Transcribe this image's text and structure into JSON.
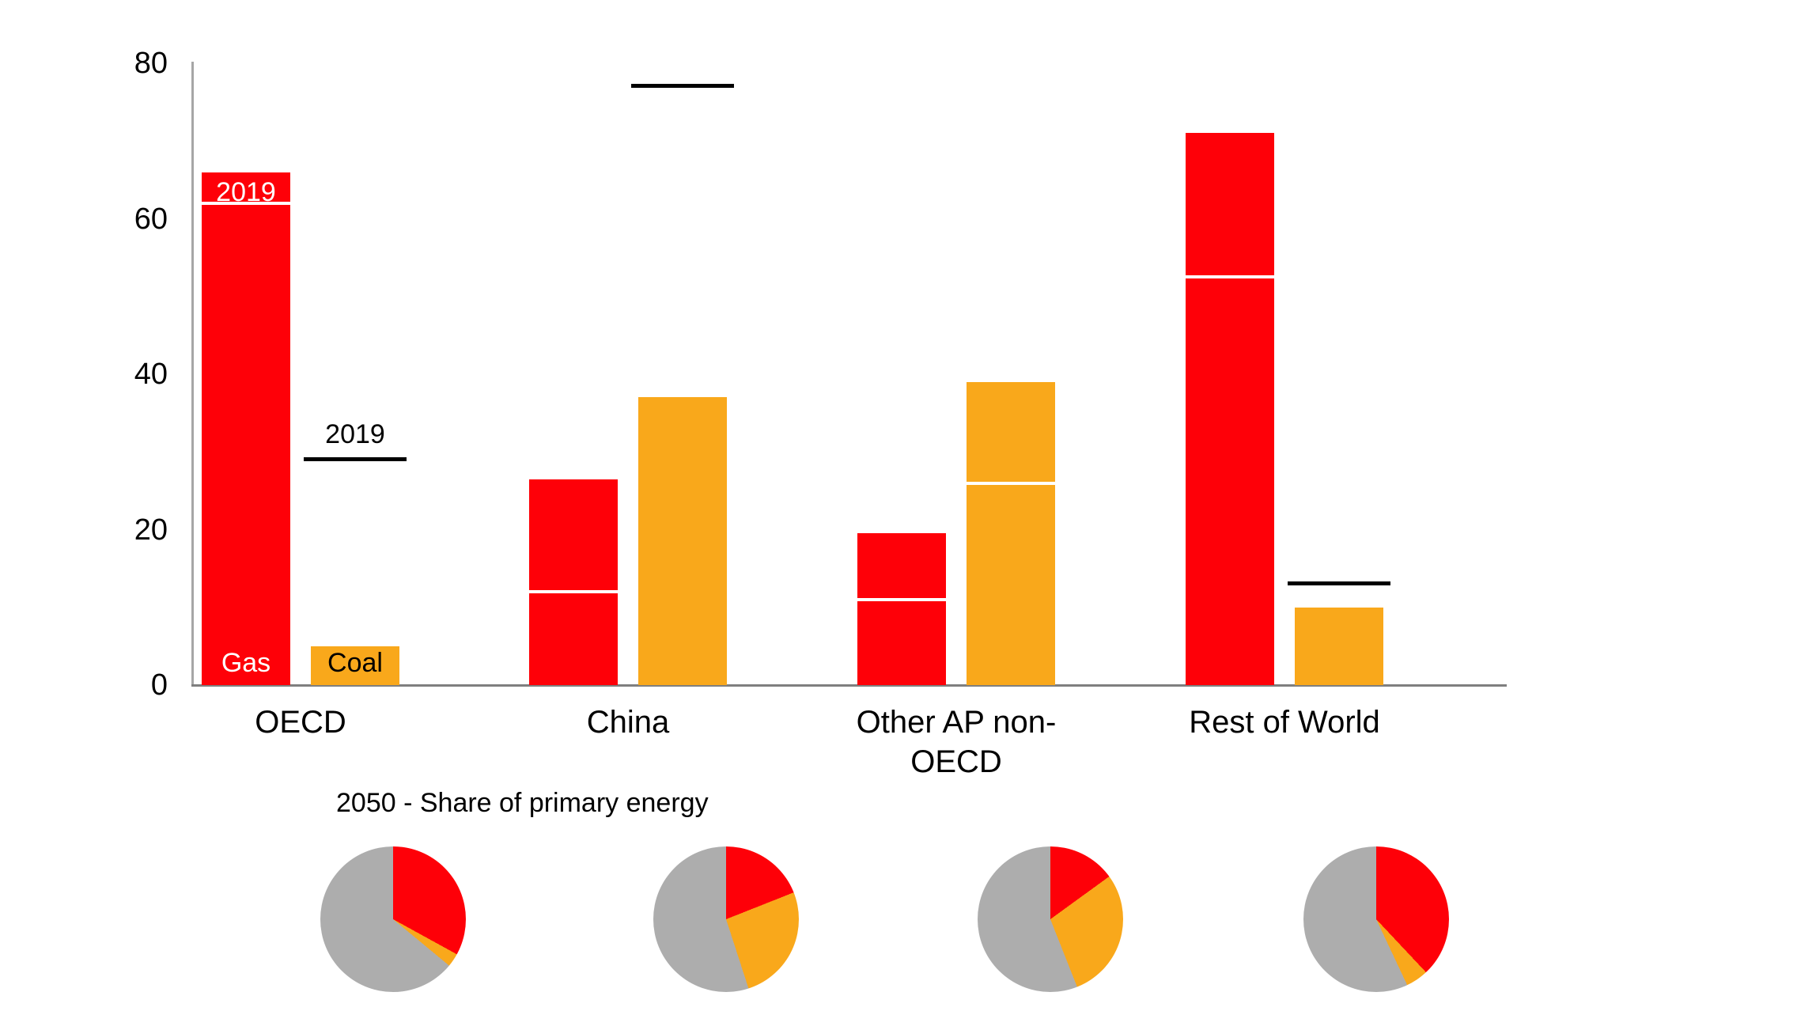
{
  "colors": {
    "gas_red": "#FE0008",
    "coal_orange": "#F9A81B",
    "other_gray": "#ADADAD",
    "axis_line": "#A6A6A6",
    "baseline": "#7F7F7F",
    "marker_black": "#000000",
    "marker_white": "#FFFFFF",
    "text_black": "#000000",
    "text_white": "#FFFFFF"
  },
  "chart_data": {
    "type": "bar",
    "title": "",
    "xlabel": "",
    "ylabel": "",
    "ylim": [
      0,
      80
    ],
    "yticks": [
      0,
      20,
      40,
      60,
      80
    ],
    "grid": false,
    "legend_position": "none",
    "categories": [
      "OECD",
      "China",
      "Other AP non-OECD",
      "Rest of World"
    ],
    "category_label_lines": [
      [
        "OECD"
      ],
      [
        "China"
      ],
      [
        "Other AP non-",
        "OECD"
      ],
      [
        "Rest of World"
      ]
    ],
    "series": [
      {
        "name": "Gas",
        "color_key": "gas_red",
        "values_2050": [
          66,
          26.5,
          19.5,
          71
        ],
        "values_2019": [
          62,
          12,
          11,
          52.5
        ]
      },
      {
        "name": "Coal",
        "color_key": "coal_orange",
        "values_2050": [
          5,
          37,
          39,
          10
        ],
        "values_2019": [
          29,
          77,
          26,
          13
        ]
      }
    ],
    "marker_year_label": "2019",
    "inbar_series_labels": {
      "gas": "Gas",
      "coal": "Coal"
    }
  },
  "pies": {
    "title": "2050 - Share of primary energy",
    "items": [
      {
        "category": "OECD",
        "gas_pct": 33,
        "coal_pct": 3,
        "other_pct": 64
      },
      {
        "category": "China",
        "gas_pct": 19,
        "coal_pct": 26,
        "other_pct": 55
      },
      {
        "category": "Other AP non-OECD",
        "gas_pct": 15,
        "coal_pct": 29,
        "other_pct": 56
      },
      {
        "category": "Rest of World",
        "gas_pct": 38,
        "coal_pct": 5,
        "other_pct": 57
      }
    ]
  }
}
